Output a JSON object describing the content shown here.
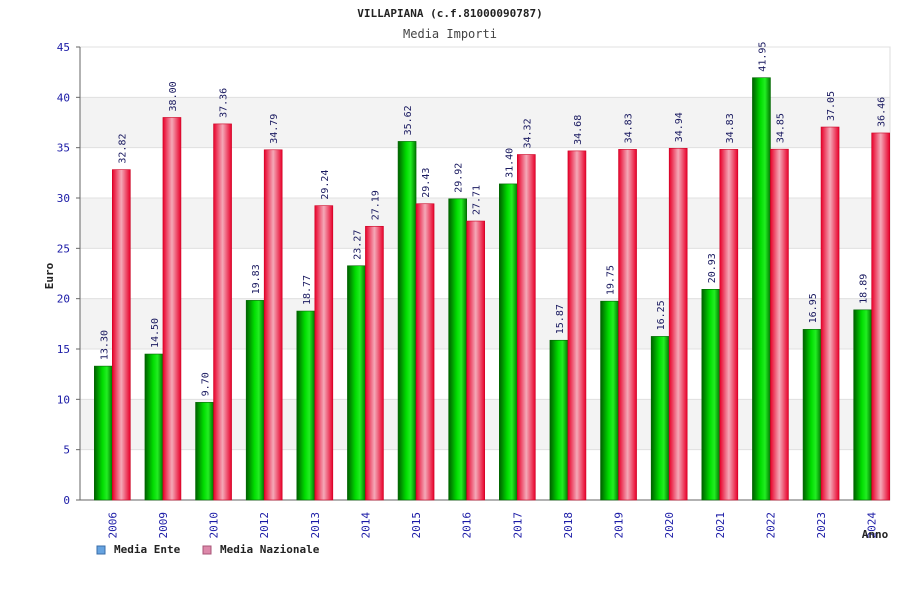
{
  "chart_data": {
    "type": "bar",
    "title": "VILLAPIANA (c.f.81000090787)",
    "subtitle": "Media Importi",
    "xlabel": "Anno",
    "ylabel": "Euro",
    "ylim": [
      0,
      45
    ],
    "yticks": [
      0,
      5,
      10,
      15,
      20,
      25,
      30,
      35,
      40,
      45
    ],
    "grid": true,
    "legend_position": "bottom-left",
    "categories": [
      "2006",
      "2009",
      "2010",
      "2012",
      "2013",
      "2014",
      "2015",
      "2016",
      "2017",
      "2018",
      "2019",
      "2020",
      "2021",
      "2022",
      "2023",
      "2024"
    ],
    "series": [
      {
        "name": "Media Ente",
        "color": "#00bb00",
        "values": [
          13.3,
          14.5,
          9.7,
          19.83,
          18.77,
          23.27,
          35.62,
          29.92,
          31.4,
          15.87,
          19.75,
          16.25,
          20.93,
          41.95,
          16.95,
          18.89
        ],
        "labels": [
          "13.30",
          "14.50",
          "9.70",
          "19.83",
          "18.77",
          "23.27",
          "35.62",
          "29.92",
          "31.40",
          "15.87",
          "19.75",
          "16.25",
          "20.93",
          "41.95",
          "16.95",
          "18.89"
        ]
      },
      {
        "name": "Media Nazionale",
        "color": "#ee1c2e",
        "values": [
          32.82,
          38.0,
          37.36,
          34.79,
          29.24,
          27.19,
          29.43,
          27.71,
          34.32,
          34.68,
          34.83,
          34.94,
          34.83,
          34.85,
          37.05,
          36.46
        ],
        "labels": [
          "32.82",
          "38.00",
          "37.36",
          "34.79",
          "29.24",
          "27.19",
          "29.43",
          "27.71",
          "34.32",
          "34.68",
          "34.83",
          "34.94",
          "34.83",
          "34.85",
          "37.05",
          "36.46"
        ]
      }
    ],
    "legend": [
      {
        "label": "Media Ente",
        "swatch_color": "#66a3e0"
      },
      {
        "label": "Media Nazionale",
        "swatch_color": "#dd88aa"
      }
    ]
  }
}
